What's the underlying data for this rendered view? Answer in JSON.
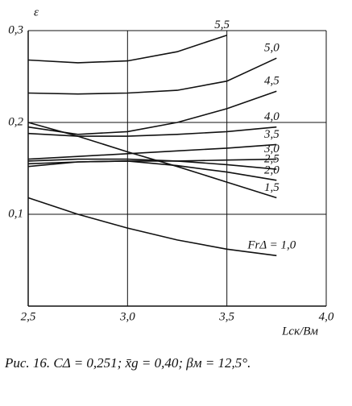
{
  "chart_data": {
    "type": "line",
    "y_label": "ε",
    "x_label": "Lск/Bм",
    "caption": "Рис. 16. CΔ = 0,251; x̄g = 0,40; βм = 12,5°.",
    "x": [
      2.5,
      2.75,
      3.0,
      3.25,
      3.5,
      3.75
    ],
    "xlim": [
      2.5,
      4.0
    ],
    "xticks": [
      {
        "value": 2.5,
        "label": "2,5"
      },
      {
        "value": 3.0,
        "label": "3,0"
      },
      {
        "value": 3.5,
        "label": "3,5"
      },
      {
        "value": 4.0,
        "label": "4,0"
      }
    ],
    "ylim": [
      0,
      0.3
    ],
    "yticks": [
      {
        "value": 0.1,
        "label": "0,1"
      },
      {
        "value": 0.2,
        "label": "0,2"
      },
      {
        "value": 0.3,
        "label": "0,3"
      }
    ],
    "grid": true,
    "color": "#111",
    "series": [
      {
        "name": "5,5",
        "values": [
          0.268,
          0.265,
          0.267,
          0.277,
          0.295,
          null
        ]
      },
      {
        "name": "5,0",
        "values": [
          0.232,
          0.231,
          0.232,
          0.235,
          0.245,
          0.27
        ]
      },
      {
        "name": "4,5",
        "values": [
          0.195,
          0.187,
          0.19,
          0.2,
          0.215,
          0.234
        ]
      },
      {
        "name": "4,0",
        "values": [
          0.188,
          0.185,
          0.185,
          0.187,
          0.19,
          0.195
        ]
      },
      {
        "name": "3,5",
        "values": [
          0.16,
          0.163,
          0.166,
          0.169,
          0.172,
          0.176
        ]
      },
      {
        "name": "3,0",
        "values": [
          0.155,
          0.157,
          0.158,
          0.158,
          0.159,
          0.16
        ]
      },
      {
        "name": "2,5",
        "values": [
          0.158,
          0.16,
          0.16,
          0.158,
          0.154,
          0.149
        ]
      },
      {
        "name": "2,0",
        "values": [
          0.152,
          0.157,
          0.158,
          0.153,
          0.146,
          0.137
        ]
      },
      {
        "name": "1,5",
        "values": [
          0.2,
          0.185,
          0.168,
          0.152,
          0.135,
          0.118
        ]
      },
      {
        "name": "FrΔ = 1,0",
        "values": [
          0.118,
          0.1,
          0.085,
          0.072,
          0.062,
          0.055
        ]
      }
    ]
  }
}
